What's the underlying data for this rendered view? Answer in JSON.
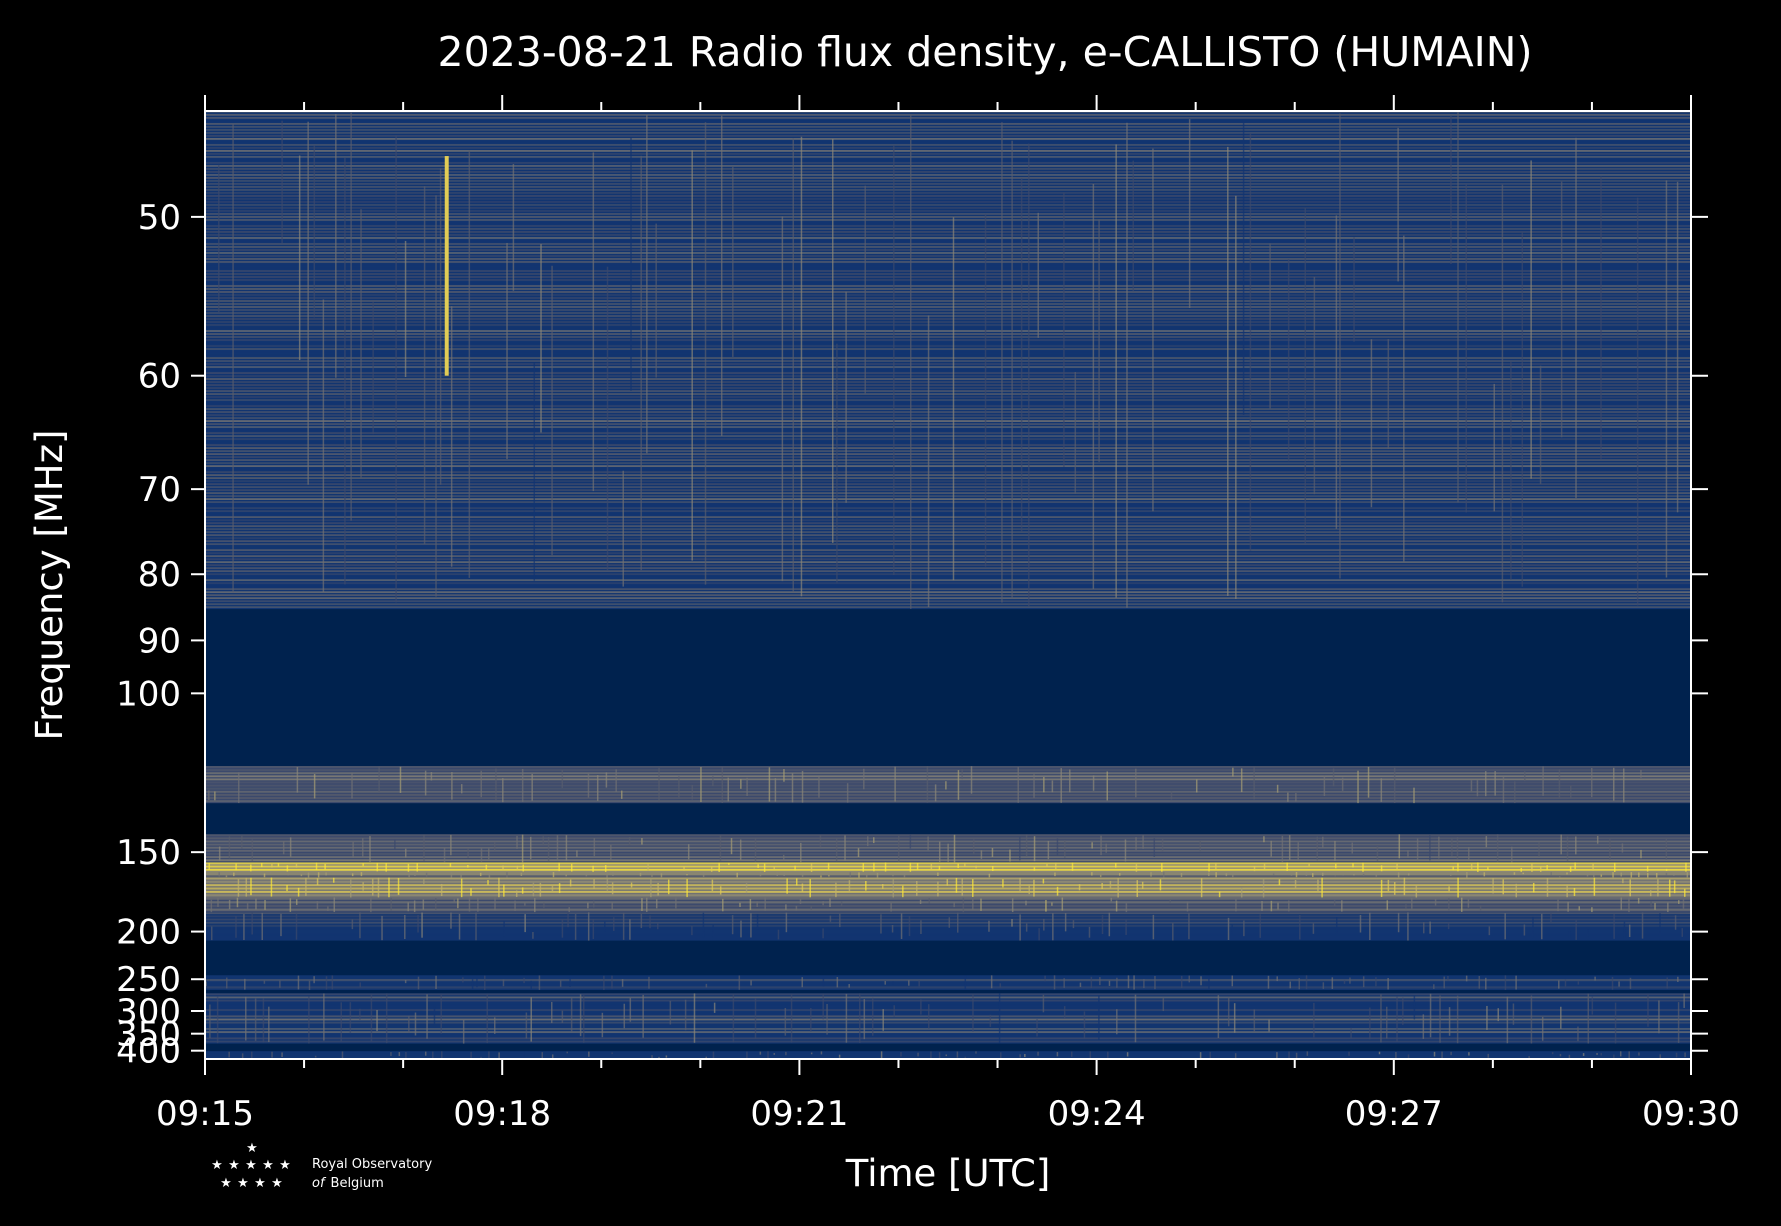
{
  "chart_data": {
    "type": "heatmap",
    "title": "2023-08-21 Radio flux density, e-CALLISTO (HUMAIN)",
    "xlabel": "Time [UTC]",
    "ylabel": "Frequency [MHz]",
    "x_ticks": [
      "09:15",
      "09:18",
      "09:21",
      "09:24",
      "09:27",
      "09:30"
    ],
    "x_tick_minutes": [
      0,
      3,
      6,
      9,
      12,
      15
    ],
    "xlim_minutes": [
      0,
      15
    ],
    "y_ticks": [
      50,
      60,
      70,
      80,
      90,
      100,
      150,
      200,
      250,
      300,
      350,
      400
    ],
    "y_scale": "reciprocal",
    "ylim": [
      45,
      430
    ],
    "colormap": [
      "#00224e",
      "#123570",
      "#3b496c",
      "#575d6d",
      "#707173",
      "#8a8678",
      "#a59c74",
      "#c3b369",
      "#e1cc55",
      "#fee838"
    ],
    "bands": [
      {
        "fmin": 45,
        "fmax": 85,
        "level": 0.28
      },
      {
        "fmin": 85,
        "fmax": 118,
        "level": 0.0
      },
      {
        "fmin": 118,
        "fmax": 130,
        "level": 0.42
      },
      {
        "fmin": 130,
        "fmax": 142,
        "level": 0.0
      },
      {
        "fmin": 142,
        "fmax": 155,
        "level": 0.38
      },
      {
        "fmin": 155,
        "fmax": 160,
        "level": 0.95
      },
      {
        "fmin": 160,
        "fmax": 163,
        "level": 0.55
      },
      {
        "fmin": 163,
        "fmax": 175,
        "level": 0.8
      },
      {
        "fmin": 175,
        "fmax": 185,
        "level": 0.45
      },
      {
        "fmin": 185,
        "fmax": 208,
        "level": 0.25
      },
      {
        "fmin": 208,
        "fmax": 245,
        "level": 0.0
      },
      {
        "fmin": 245,
        "fmax": 265,
        "level": 0.22
      },
      {
        "fmin": 265,
        "fmax": 270,
        "level": 0.0
      },
      {
        "fmin": 270,
        "fmax": 378,
        "level": 0.27
      },
      {
        "fmin": 378,
        "fmax": 402,
        "level": 0.0
      },
      {
        "fmin": 402,
        "fmax": 430,
        "level": 0.25
      }
    ],
    "bursts": [
      {
        "t_min": 2.42,
        "t_max": 2.46,
        "fmin": 47,
        "fmax": 60,
        "level": 0.9
      }
    ]
  },
  "logo": {
    "line1": "Royal Observatory",
    "line2_italic": "of",
    "line2": "Belgium"
  },
  "colors": {
    "background": "#000000",
    "axes": "#ffffff",
    "text": "#ffffff"
  }
}
